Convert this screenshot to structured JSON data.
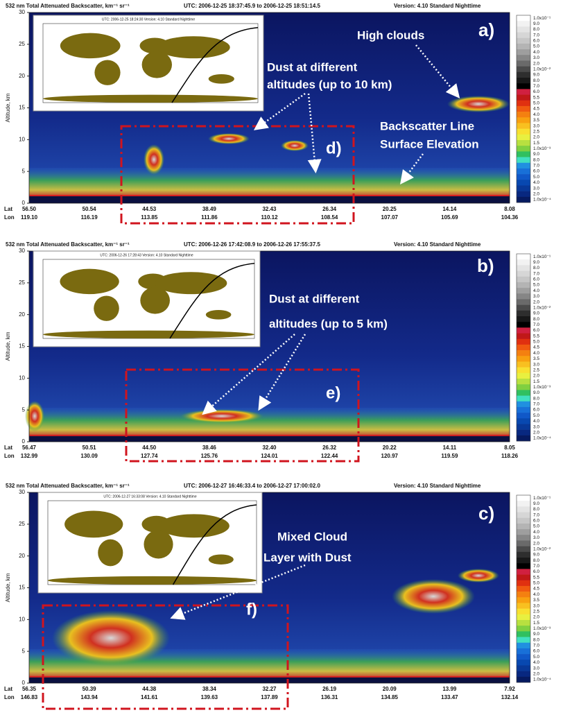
{
  "colorbar_labels": [
    "1.0x10⁻¹",
    "9.0",
    "8.0",
    "7.0",
    "6.0",
    "5.0",
    "4.0",
    "3.0",
    "2.0",
    "1.0x10⁻²",
    "9.0",
    "8.0",
    "7.0",
    "6.0",
    "5.5",
    "5.0",
    "4.5",
    "4.0",
    "3.5",
    "3.0",
    "2.5",
    "2.0",
    "1.5",
    "1.0x10⁻³",
    "9.0",
    "8.0",
    "7.0",
    "6.0",
    "5.0",
    "4.0",
    "3.0",
    "2.0",
    "1.0x10⁻⁴"
  ],
  "panels": [
    {
      "header": {
        "product": "532 nm Total Attenuated Backscatter, km⁻¹ sr⁻¹",
        "utc": "UTC:  2006-12-25 18:37:45.9  to  2006-12-25 18:51:14.5",
        "version": "Version: 4.10  Standard  Nighttime"
      },
      "y_label": "Altitude, km",
      "y_ticks": [
        0,
        5,
        10,
        15,
        20,
        25,
        30
      ],
      "lat_label": "Lat",
      "lat": [
        "56.50",
        "50.54",
        "44.53",
        "38.49",
        "32.43",
        "26.34",
        "20.25",
        "14.14",
        "8.08"
      ],
      "lon_label": "Lon",
      "lon": [
        "119.10",
        "116.19",
        "113.85",
        "111.86",
        "110.12",
        "108.54",
        "107.07",
        "105.69",
        "104.36"
      ],
      "inset_title": "UTC: 2006-12-25 18:24:30   Version: 4.10  Standard   Nighttime",
      "panel_label": "a)",
      "box_label": "d)",
      "annotations": [
        "High clouds",
        "Dust at different",
        "altitudes (up to 10 km)",
        "Backscatter Line",
        "Surface Elevation"
      ]
    },
    {
      "header": {
        "product": "532 nm Total Attenuated Backscatter, km⁻¹ sr⁻¹",
        "utc": "UTC:  2006-12-26 17:42:08.9  to  2006-12-26 17:55:37.5",
        "version": "Version: 4.10  Standard  Nighttime"
      },
      "y_label": "Altitude, km",
      "y_ticks": [
        0,
        5,
        10,
        15,
        20,
        25,
        30
      ],
      "lat_label": "Lat",
      "lat": [
        "56.47",
        "50.51",
        "44.50",
        "38.46",
        "32.40",
        "26.32",
        "20.22",
        "14.11",
        "8.05"
      ],
      "lon_label": "Lon",
      "lon": [
        "132.99",
        "130.09",
        "127.74",
        "125.76",
        "124.01",
        "122.44",
        "120.97",
        "119.59",
        "118.26"
      ],
      "inset_title": "UTC: 2006-12-26 17:28:43   Version: 4.10  Standard   Nighttime",
      "panel_label": "b)",
      "box_label": "e)",
      "annotations": [
        "Dust at different",
        "altitudes (up to 5 km)"
      ]
    },
    {
      "header": {
        "product": "532 nm Total Attenuated Backscatter, km⁻¹ sr⁻¹",
        "utc": "UTC:  2006-12-27 16:46:33.4  to  2006-12-27 17:00:02.0",
        "version": "Version: 4.10  Standard  Nighttime"
      },
      "y_label": "Altitude, km",
      "y_ticks": [
        0,
        5,
        10,
        15,
        20,
        25,
        30
      ],
      "lat_label": "Lat",
      "lat": [
        "56.35",
        "50.39",
        "44.38",
        "38.34",
        "32.27",
        "26.19",
        "20.09",
        "13.99",
        "7.92"
      ],
      "lon_label": "Lon",
      "lon": [
        "146.83",
        "143.94",
        "141.61",
        "139.63",
        "137.89",
        "136.31",
        "134.85",
        "133.47",
        "132.14"
      ],
      "inset_title": "UTC: 2006-12-27 16:33:08   Version: 4.10  Standard   Nighttime",
      "panel_label": "c)",
      "box_label": "f)",
      "annotations": [
        "Mixed Cloud",
        "Layer with Dust"
      ]
    }
  ]
}
